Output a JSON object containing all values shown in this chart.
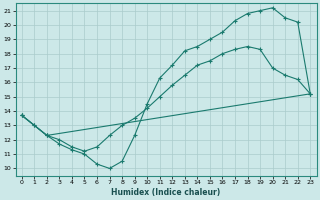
{
  "xlabel": "Humidex (Indice chaleur)",
  "xlim": [
    -0.5,
    23.5
  ],
  "ylim": [
    9.5,
    21.5
  ],
  "xticks": [
    0,
    1,
    2,
    3,
    4,
    5,
    6,
    7,
    8,
    9,
    10,
    11,
    12,
    13,
    14,
    15,
    16,
    17,
    18,
    19,
    20,
    21,
    22,
    23
  ],
  "yticks": [
    10,
    11,
    12,
    13,
    14,
    15,
    16,
    17,
    18,
    19,
    20,
    21
  ],
  "line_color": "#1a7a6e",
  "bg_color": "#cce8e8",
  "grid_color": "#aacccc",
  "line1_x": [
    0,
    1,
    2,
    3,
    4,
    5,
    6,
    7,
    8,
    9,
    10,
    11,
    12,
    13,
    14,
    15,
    16,
    17,
    18,
    19,
    20,
    21,
    22,
    23
  ],
  "line1_y": [
    13.7,
    13.0,
    12.3,
    11.7,
    11.3,
    11.0,
    10.3,
    10.0,
    10.5,
    12.3,
    14.5,
    16.3,
    17.2,
    18.2,
    18.5,
    19.0,
    19.5,
    20.3,
    20.8,
    21.0,
    21.2,
    20.5,
    20.2,
    15.2
  ],
  "line2_x": [
    0,
    2,
    23
  ],
  "line2_y": [
    13.7,
    12.3,
    15.2
  ],
  "line3_x": [
    0,
    1,
    2,
    3,
    4,
    5,
    6,
    7,
    8,
    9,
    10,
    11,
    12,
    13,
    14,
    15,
    16,
    17,
    18,
    19,
    20,
    21,
    22,
    23
  ],
  "line3_y": [
    13.7,
    13.0,
    12.3,
    12.0,
    11.5,
    11.2,
    11.5,
    12.3,
    13.0,
    13.5,
    14.2,
    15.0,
    15.8,
    16.5,
    17.2,
    17.5,
    18.0,
    18.3,
    18.5,
    18.3,
    17.0,
    16.5,
    16.2,
    15.2
  ]
}
